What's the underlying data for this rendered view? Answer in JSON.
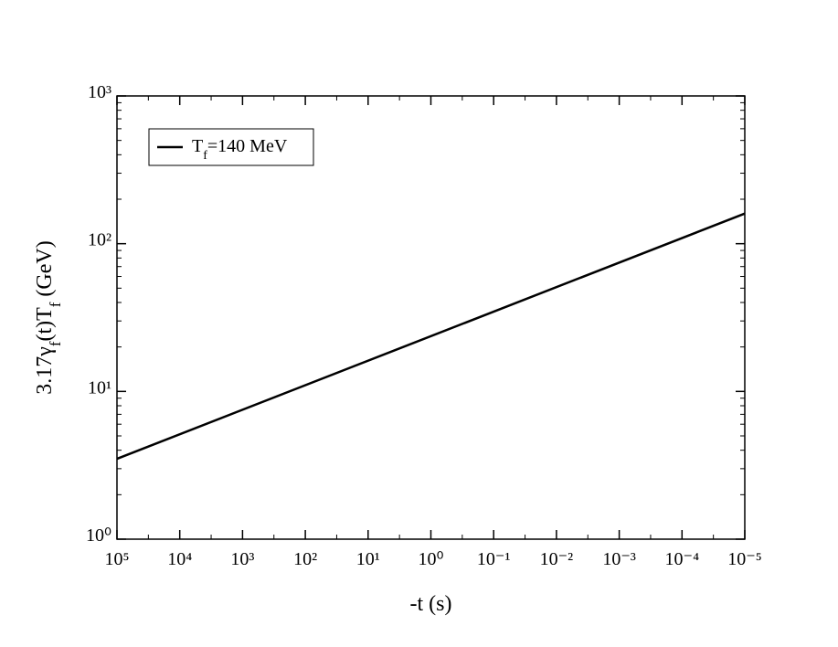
{
  "chart_data": {
    "type": "line",
    "xlabel": "-t (s)",
    "ylabel": "3.17γ_f(t)T_f (GeV)",
    "x": [
      100000,
      1e-05
    ],
    "series": [
      {
        "name": "T_f=140 MeV",
        "color": "#000000",
        "values": [
          3.5,
          160
        ]
      }
    ],
    "xlim": [
      100000,
      1e-05
    ],
    "ylim": [
      1,
      1000
    ],
    "xscale": "log",
    "yscale": "log",
    "xticks": [
      {
        "value": 100000,
        "label": "10⁵"
      },
      {
        "value": 10000,
        "label": "10⁴"
      },
      {
        "value": 1000,
        "label": "10³"
      },
      {
        "value": 100,
        "label": "10²"
      },
      {
        "value": 10,
        "label": "10¹"
      },
      {
        "value": 1,
        "label": "10⁰"
      },
      {
        "value": 0.1,
        "label": "10⁻¹"
      },
      {
        "value": 0.01,
        "label": "10⁻²"
      },
      {
        "value": 0.001,
        "label": "10⁻³"
      },
      {
        "value": 0.0001,
        "label": "10⁻⁴"
      },
      {
        "value": 1e-05,
        "label": "10⁻⁵"
      }
    ],
    "yticks": [
      {
        "value": 1,
        "label": "10⁰"
      },
      {
        "value": 10,
        "label": "10¹"
      },
      {
        "value": 100,
        "label": "10²"
      },
      {
        "value": 1000,
        "label": "10³"
      }
    ],
    "legend": "top-left"
  }
}
